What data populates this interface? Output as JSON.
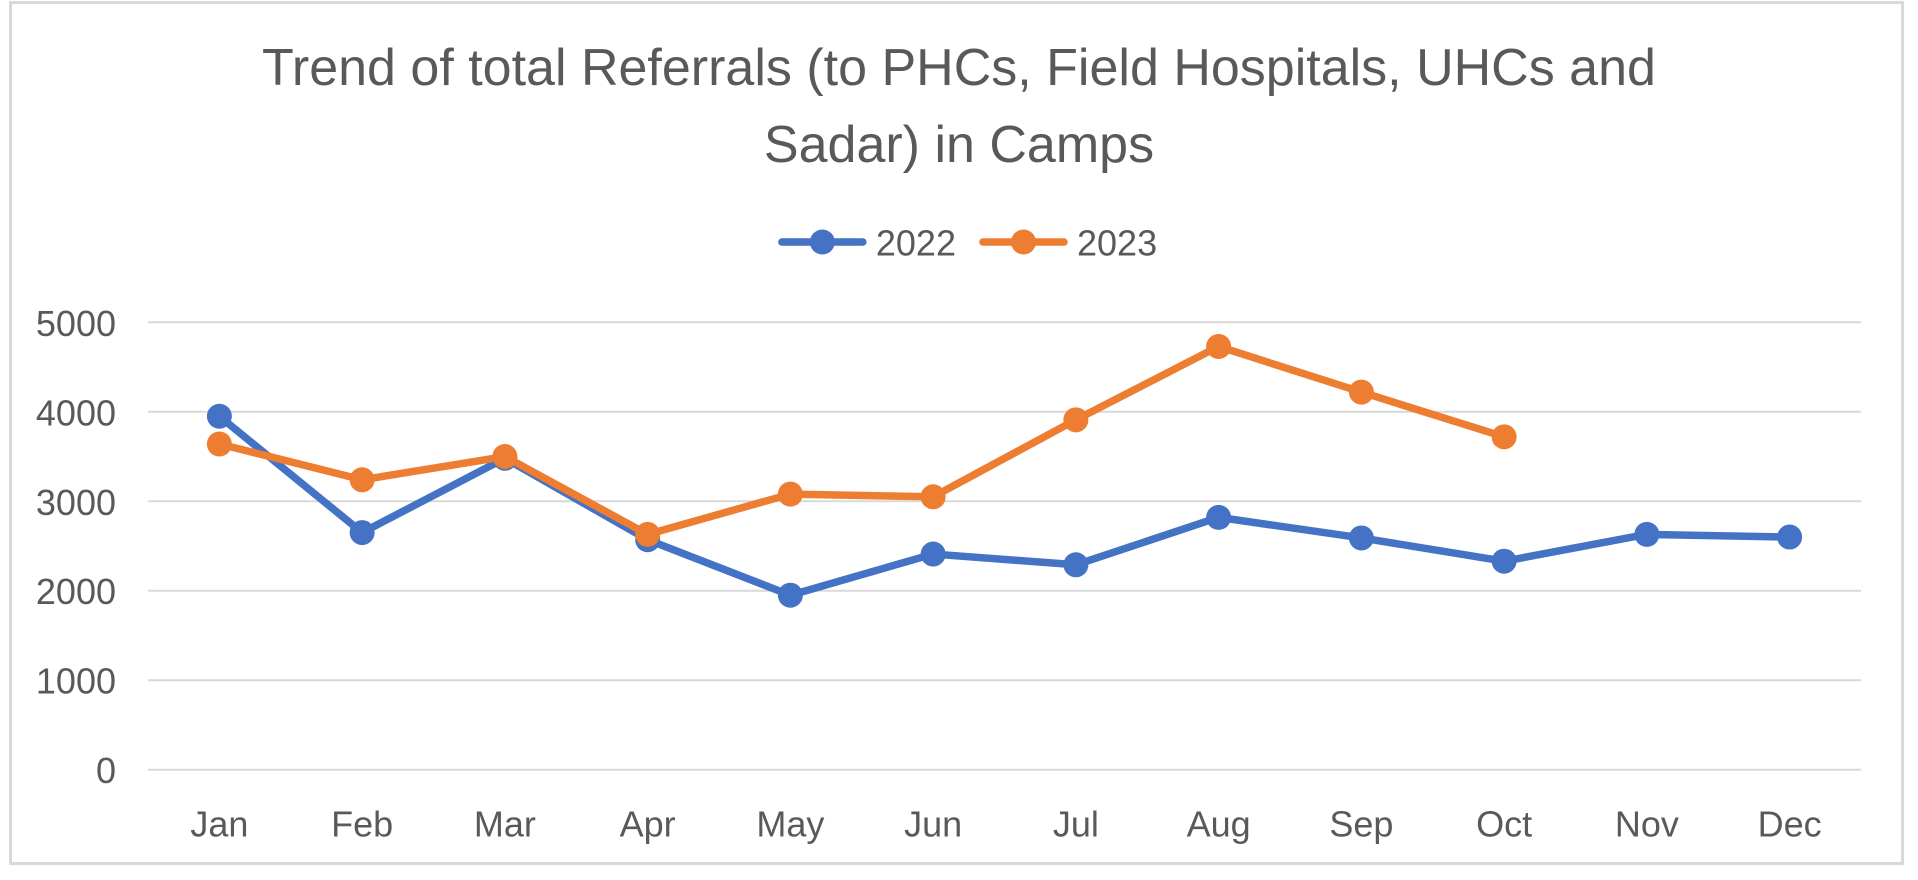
{
  "chart_data": {
    "type": "line",
    "title": "Trend of total Referrals (to PHCs, Field Hospitals, UHCs and Sadar) in Camps",
    "title_lines": [
      "Trend of total Referrals (to PHCs, Field Hospitals, UHCs and",
      "Sadar) in Camps"
    ],
    "categories": [
      "Jan",
      "Feb",
      "Mar",
      "Apr",
      "May",
      "Jun",
      "Jul",
      "Aug",
      "Sep",
      "Oct",
      "Nov",
      "Dec"
    ],
    "series": [
      {
        "name": "2022",
        "color": "#4472C4",
        "values": [
          3950,
          2650,
          3480,
          2570,
          1950,
          2410,
          2290,
          2820,
          2590,
          2330,
          2630,
          2600
        ]
      },
      {
        "name": "2023",
        "color": "#ED7D31",
        "values": [
          3640,
          3240,
          3500,
          2630,
          3080,
          3050,
          3910,
          4730,
          4220,
          3720,
          null,
          null
        ]
      }
    ],
    "xlabel": "",
    "ylabel": "",
    "ylim": [
      0,
      5000
    ],
    "ytick_step": 1000,
    "yticks": [
      0,
      1000,
      2000,
      3000,
      4000,
      5000
    ],
    "grid": true,
    "legend_position": "top",
    "legend_labels": [
      "2022",
      "2023"
    ],
    "colors": {
      "text": "#595959",
      "gridline": "#D9D9D9",
      "border": "#D9D9D9",
      "background": "#FFFFFF"
    }
  }
}
